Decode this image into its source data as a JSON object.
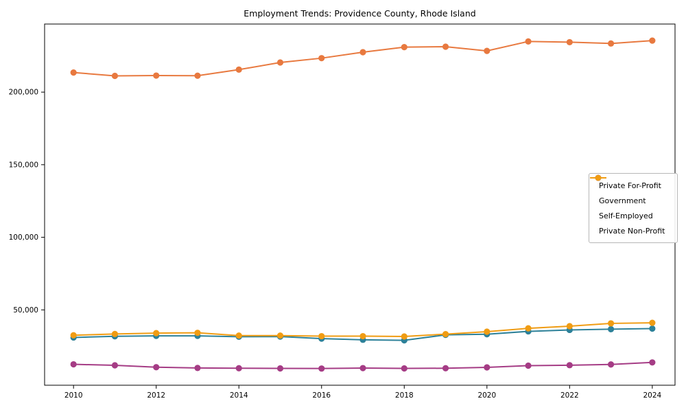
{
  "window": {
    "background": "#ffffff"
  },
  "chart_data": {
    "type": "line",
    "title": "Employment Trends: Providence County, Rhode Island",
    "xlabel": "",
    "ylabel": "",
    "x": [
      2010,
      2011,
      2012,
      2013,
      2014,
      2015,
      2016,
      2017,
      2018,
      2019,
      2020,
      2021,
      2022,
      2023,
      2024
    ],
    "x_tick_labels": [
      "2010",
      "2012",
      "2014",
      "2016",
      "2018",
      "2020",
      "2022",
      "2024"
    ],
    "x_ticks": [
      2010,
      2012,
      2014,
      2016,
      2018,
      2020,
      2022,
      2024
    ],
    "y_ticks": [
      50000,
      100000,
      150000,
      200000
    ],
    "y_tick_labels": [
      "50,000",
      "100,000",
      "150,000",
      "200,000"
    ],
    "xlim": [
      2009.3,
      2024.55
    ],
    "ylim": [
      -1900,
      246900
    ],
    "grid": false,
    "legend_position": "center right",
    "marker": "circle",
    "series": [
      {
        "name": "Private For-Profit",
        "color": "#e8793f",
        "values": [
          213500,
          211200,
          211400,
          211300,
          215500,
          220400,
          223400,
          227500,
          231000,
          231300,
          228400,
          234900,
          234400,
          233500,
          235500
        ]
      },
      {
        "name": "Government",
        "color": "#2d8199",
        "values": [
          31000,
          31800,
          32100,
          32100,
          31500,
          31600,
          30200,
          29400,
          29000,
          32800,
          33200,
          35200,
          36200,
          36700,
          37100
        ]
      },
      {
        "name": "Self-Employed",
        "color": "#a53c85",
        "values": [
          12500,
          11800,
          10500,
          10000,
          9800,
          9700,
          9600,
          9900,
          9700,
          9800,
          10400,
          11600,
          11900,
          12400,
          13800
        ]
      },
      {
        "name": "Private Non-Profit",
        "color": "#f09c13",
        "values": [
          32500,
          33400,
          34000,
          34200,
          32300,
          32300,
          31900,
          31900,
          31700,
          33300,
          35000,
          37300,
          38800,
          40700,
          41100
        ]
      }
    ]
  }
}
